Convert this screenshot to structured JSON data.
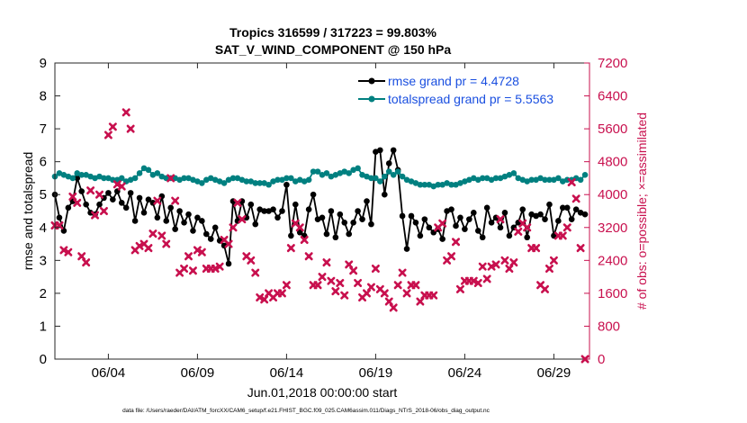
{
  "chart_data": {
    "type": "line",
    "title": "Tropics 316599 / 317223 = 99.803%",
    "subtitle": "SAT_V_WIND_COMPONENT @ 150 hPa",
    "xlabel": "Jun.01,2018 00:00:00 start",
    "ylabel": "rmse and totalspread",
    "y2label": "# of obs: o=possible; ×=assimilated",
    "footnote": "data file: /Users/raeder/DAI/ATM_forcXX/CAM6_setup/f.e21.FHIST_BGC.f09_025.CAM6assim.011/Diags_NTrS_2018-06/obs_diag_output.nc",
    "xlim": [
      1.0,
      31.0
    ],
    "ylim": [
      0,
      9
    ],
    "y2lim": [
      0,
      7200
    ],
    "xticks": [
      4,
      9,
      14,
      19,
      24,
      29
    ],
    "xtick_labels": [
      "06/04",
      "06/09",
      "06/14",
      "06/19",
      "06/24",
      "06/29"
    ],
    "yticks": [
      "0",
      "1",
      "2",
      "3",
      "4",
      "5",
      "6",
      "7",
      "8",
      "9"
    ],
    "y2ticks": [
      "0",
      "800",
      "1600",
      "2400",
      "3200",
      "4000",
      "4800",
      "5600",
      "6400",
      "7200"
    ],
    "x": [
      1.0,
      1.25,
      1.5,
      1.75,
      2.0,
      2.25,
      2.5,
      2.75,
      3.0,
      3.25,
      3.5,
      3.75,
      4.0,
      4.25,
      4.5,
      4.75,
      5.0,
      5.25,
      5.5,
      5.75,
      6.0,
      6.25,
      6.5,
      6.75,
      7.0,
      7.25,
      7.5,
      7.75,
      8.0,
      8.25,
      8.5,
      8.75,
      9.0,
      9.25,
      9.5,
      9.75,
      10.0,
      10.25,
      10.5,
      10.75,
      11.0,
      11.25,
      11.5,
      11.75,
      12.0,
      12.25,
      12.5,
      12.75,
      13.0,
      13.25,
      13.5,
      13.75,
      14.0,
      14.25,
      14.5,
      14.75,
      15.0,
      15.25,
      15.5,
      15.75,
      16.0,
      16.25,
      16.5,
      16.75,
      17.0,
      17.25,
      17.5,
      17.75,
      18.0,
      18.25,
      18.5,
      18.75,
      19.0,
      19.25,
      19.5,
      19.75,
      20.0,
      20.25,
      20.5,
      20.75,
      21.0,
      21.25,
      21.5,
      21.75,
      22.0,
      22.25,
      22.5,
      22.75,
      23.0,
      23.25,
      23.5,
      23.75,
      24.0,
      24.25,
      24.5,
      24.75,
      25.0,
      25.25,
      25.5,
      25.75,
      26.0,
      26.25,
      26.5,
      26.75,
      27.0,
      27.25,
      27.5,
      27.75,
      28.0,
      28.25,
      28.5,
      28.75,
      29.0,
      29.25,
      29.5,
      29.75,
      30.0,
      30.25,
      30.5,
      30.75
    ],
    "series": [
      {
        "name": "rmse grand pr = 4.4728",
        "color": "#000000",
        "axis": "left",
        "marker": "circle",
        "values": [
          5.0,
          4.3,
          3.9,
          4.6,
          4.8,
          5.5,
          5.1,
          4.7,
          4.45,
          4.4,
          4.7,
          4.9,
          5.05,
          4.85,
          5.1,
          4.75,
          4.6,
          5.05,
          4.2,
          4.9,
          4.45,
          4.85,
          4.75,
          4.3,
          4.95,
          4.2,
          4.6,
          3.95,
          4.5,
          4.15,
          4.4,
          3.9,
          4.3,
          4.2,
          3.8,
          3.65,
          4.0,
          3.6,
          3.45,
          2.9,
          4.8,
          4.2,
          4.8,
          4.3,
          4.7,
          4.1,
          4.55,
          4.5,
          4.5,
          4.55,
          4.3,
          4.5,
          5.3,
          3.75,
          4.7,
          3.85,
          3.75,
          4.55,
          5.0,
          4.25,
          4.3,
          3.8,
          4.5,
          3.7,
          4.4,
          4.15,
          3.8,
          4.15,
          4.5,
          4.25,
          4.8,
          4.1,
          6.3,
          6.35,
          5.0,
          5.95,
          6.35,
          5.75,
          4.35,
          3.35,
          4.35,
          4.15,
          3.75,
          4.25,
          4.0,
          3.85,
          3.95,
          3.65,
          4.5,
          4.55,
          4.05,
          4.3,
          3.95,
          4.25,
          4.45,
          3.9,
          3.7,
          4.6,
          4.15,
          4.3,
          4.0,
          4.45,
          3.75,
          4.0,
          4.15,
          4.55,
          3.7,
          4.4,
          4.35,
          4.4,
          4.25,
          4.7,
          3.75,
          4.2,
          4.6,
          4.6,
          4.25,
          4.55,
          4.45,
          4.4
        ]
      },
      {
        "name": "totalspread grand pr = 5.5563",
        "color": "#008080",
        "axis": "left",
        "marker": "circle",
        "values": [
          5.55,
          5.65,
          5.6,
          5.55,
          5.5,
          5.65,
          5.6,
          5.6,
          5.55,
          5.5,
          5.55,
          5.5,
          5.5,
          5.45,
          5.45,
          5.5,
          5.4,
          5.45,
          5.5,
          5.65,
          5.8,
          5.75,
          5.6,
          5.65,
          5.55,
          5.5,
          5.5,
          5.5,
          5.45,
          5.5,
          5.5,
          5.45,
          5.4,
          5.35,
          5.45,
          5.5,
          5.45,
          5.4,
          5.35,
          5.45,
          5.5,
          5.5,
          5.45,
          5.4,
          5.4,
          5.35,
          5.35,
          5.35,
          5.3,
          5.4,
          5.45,
          5.45,
          5.5,
          5.5,
          5.4,
          5.45,
          5.4,
          5.45,
          5.7,
          5.7,
          5.6,
          5.65,
          5.55,
          5.6,
          5.65,
          5.7,
          5.65,
          5.75,
          5.8,
          5.6,
          5.55,
          5.5,
          5.5,
          5.4,
          5.55,
          5.7,
          5.6,
          5.7,
          5.55,
          5.45,
          5.4,
          5.35,
          5.3,
          5.3,
          5.3,
          5.25,
          5.3,
          5.3,
          5.35,
          5.3,
          5.3,
          5.35,
          5.4,
          5.45,
          5.5,
          5.45,
          5.5,
          5.5,
          5.45,
          5.5,
          5.5,
          5.55,
          5.6,
          5.65,
          5.5,
          5.45,
          5.4,
          5.45,
          5.45,
          5.5,
          5.45,
          5.45,
          5.45,
          5.5,
          5.4,
          5.45,
          5.45,
          5.5,
          5.45,
          5.6
        ]
      },
      {
        "name": "# of obs assimilated",
        "color": "#c8104e",
        "axis": "right",
        "marker": "x",
        "values": [
          3250,
          3250,
          2650,
          2600,
          3950,
          3800,
          2500,
          2350,
          4100,
          3500,
          4000,
          3600,
          5450,
          5650,
          4250,
          4200,
          6000,
          5600,
          2650,
          2750,
          2800,
          2700,
          3050,
          3850,
          3000,
          2800,
          4400,
          3850,
          2100,
          2200,
          2500,
          2150,
          2650,
          2600,
          2200,
          2200,
          2200,
          2250,
          2900,
          2800,
          3200,
          3800,
          3400,
          2500,
          2400,
          2100,
          1500,
          1450,
          1600,
          1500,
          1600,
          1600,
          1800,
          2700,
          3300,
          3200,
          2900,
          2500,
          1800,
          1800,
          2000,
          2350,
          1900,
          1650,
          1850,
          1550,
          2300,
          2150,
          1850,
          1500,
          1600,
          1750,
          2200,
          1700,
          1600,
          1400,
          1250,
          1800,
          2100,
          1600,
          1800,
          1800,
          1400,
          1550,
          1550,
          1550,
          3200,
          3300,
          2400,
          2500,
          2850,
          1700,
          1900,
          1900,
          1900,
          1850,
          2250,
          1950,
          2250,
          2300,
          3400,
          2400,
          2200,
          2350,
          3100,
          3300,
          3200,
          2700,
          2700,
          1800,
          1700,
          2200,
          2400,
          3000,
          3000,
          3200,
          4300,
          3900,
          2700,
          0
        ]
      }
    ],
    "legend_placement": "top-right",
    "grid": false
  }
}
